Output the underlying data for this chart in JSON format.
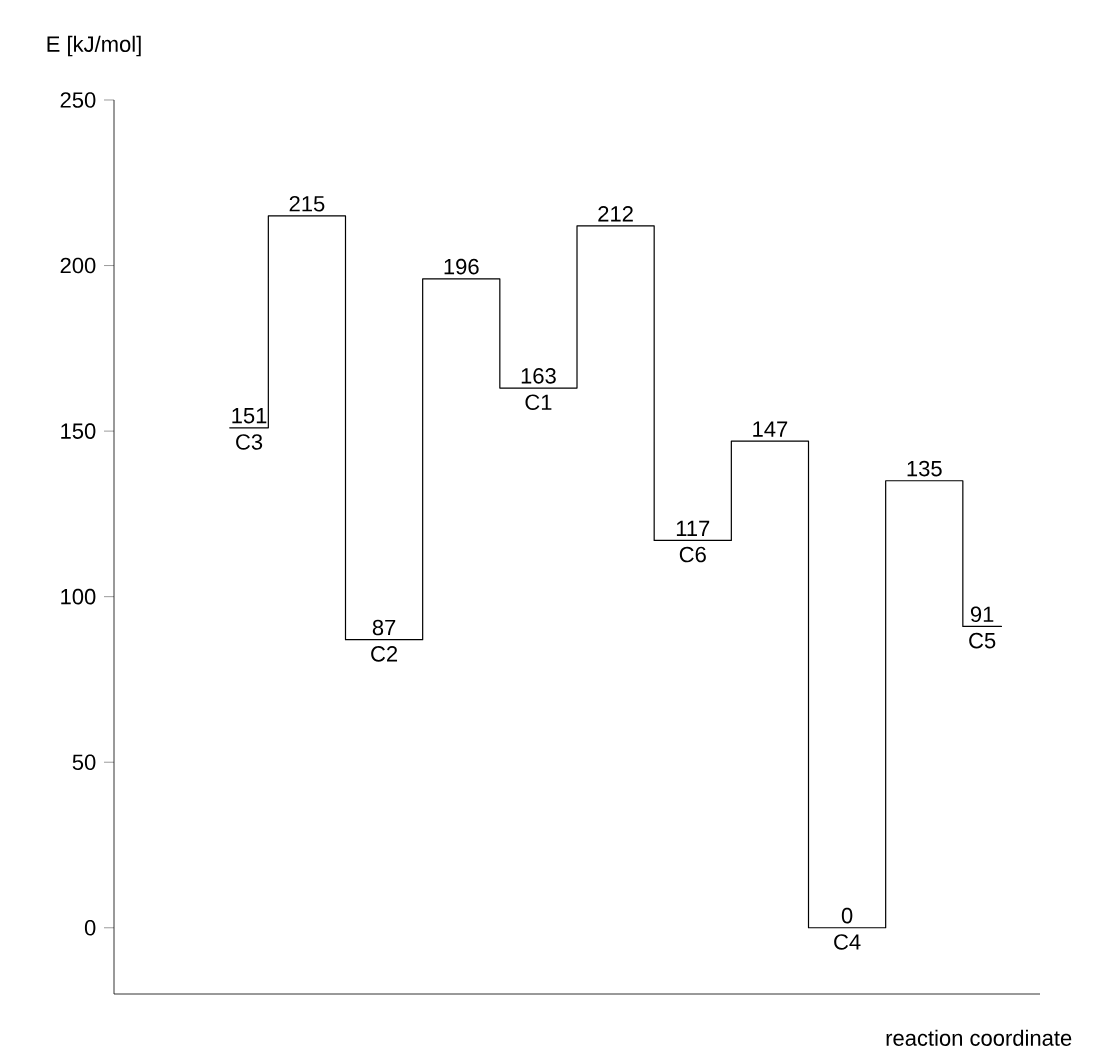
{
  "chart_data": {
    "type": "step",
    "xlabel": "reaction coordinate",
    "ylabel": "E [kJ/mol]",
    "categories": [
      "C3",
      null,
      "C2",
      null,
      "C1",
      null,
      "C6",
      null,
      "C4",
      null,
      "C5"
    ],
    "values": [
      151,
      215,
      87,
      196,
      163,
      212,
      117,
      147,
      0,
      135,
      91
    ],
    "color": "#000000",
    "ylim": [
      -20,
      250
    ],
    "yticks": [
      0,
      50,
      100,
      150,
      200,
      250
    ],
    "data_labels": true
  }
}
